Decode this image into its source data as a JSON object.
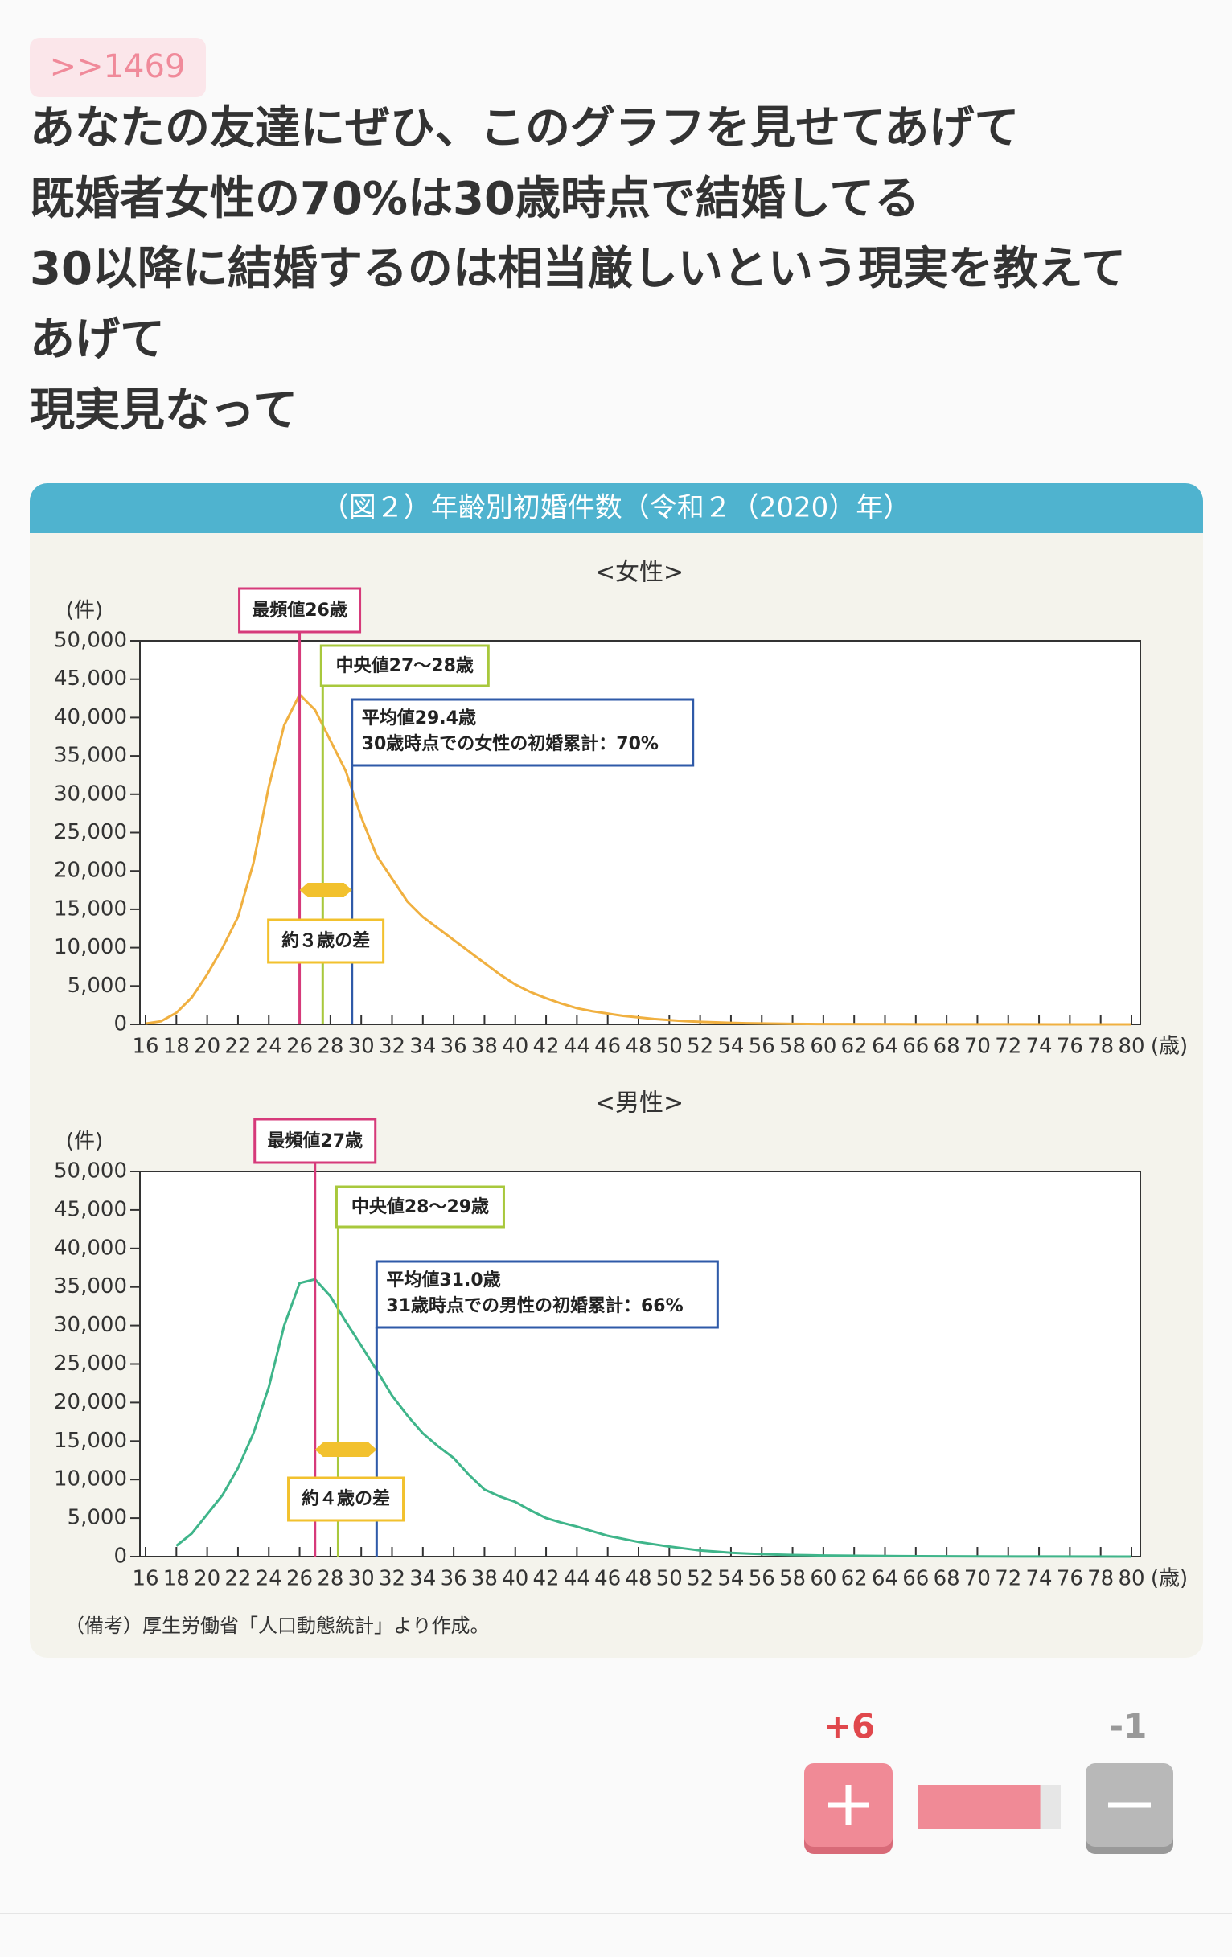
{
  "post": {
    "reply_to": ">>1469",
    "lines": [
      "あなたの友達にぜひ、このグラフを見せてあげて",
      "既婚者女性の70%は30歳時点で結婚してる",
      "30以降に結婚するのは相当厳しいという現実を教えて",
      "あげて",
      "現実見なって"
    ]
  },
  "figure": {
    "title": "（図２）年齢別初婚件数（令和２（2020）年）",
    "note": "（備考）厚生労働省「人口動態統計」より作成。"
  },
  "chart_data": [
    {
      "type": "line",
      "title": "<女性>",
      "y_label": "(件)",
      "x_label": "(歳)",
      "color": "#f0b040",
      "x": [
        16,
        17,
        18,
        19,
        20,
        21,
        22,
        23,
        24,
        25,
        26,
        27,
        28,
        29,
        30,
        31,
        32,
        33,
        34,
        35,
        36,
        37,
        38,
        39,
        40,
        41,
        42,
        43,
        44,
        45,
        46,
        47,
        48,
        49,
        50,
        51,
        52,
        53,
        54,
        55,
        56,
        57,
        58,
        59,
        60,
        65,
        70,
        75,
        80
      ],
      "values": [
        100,
        400,
        1500,
        3500,
        6500,
        10000,
        14000,
        21000,
        31000,
        39000,
        43000,
        41000,
        37000,
        33000,
        27000,
        22000,
        19000,
        16000,
        14000,
        12500,
        11000,
        9500,
        8000,
        6500,
        5200,
        4200,
        3400,
        2700,
        2100,
        1700,
        1400,
        1100,
        900,
        700,
        550,
        420,
        330,
        260,
        200,
        150,
        120,
        90,
        70,
        50,
        40,
        20,
        10,
        5,
        2
      ],
      "xlim": [
        16,
        80
      ],
      "ylim": [
        0,
        50000
      ],
      "xticks": [
        16,
        18,
        20,
        22,
        24,
        26,
        28,
        30,
        32,
        34,
        36,
        38,
        40,
        42,
        44,
        46,
        48,
        50,
        52,
        54,
        56,
        58,
        60,
        62,
        64,
        66,
        68,
        70,
        72,
        74,
        76,
        78,
        80
      ],
      "yticks": [
        {
          "value": 0,
          "label": "0"
        },
        {
          "value": 5000,
          "label": "5,000"
        },
        {
          "value": 10000,
          "label": "10,000"
        },
        {
          "value": 15000,
          "label": "15,000"
        },
        {
          "value": 20000,
          "label": "20,000"
        },
        {
          "value": 25000,
          "label": "25,000"
        },
        {
          "value": 30000,
          "label": "30,000"
        },
        {
          "value": 35000,
          "label": "35,000"
        },
        {
          "value": 40000,
          "label": "40,000"
        },
        {
          "value": 45000,
          "label": "45,000"
        },
        {
          "value": 50000,
          "label": "50,000"
        }
      ],
      "markers": [
        {
          "label": "最頻値26歳",
          "x": 26,
          "color": "#d63a7a"
        },
        {
          "label": "中央値27～28歳",
          "x": 27.5,
          "color": "#a8c83c"
        },
        {
          "label": "平均値29.4歳",
          "note": "30歳時点での女性の初婚累計：70%",
          "x": 29.4,
          "color": "#2f5aa8"
        }
      ],
      "gap": {
        "label": "約３歳の差",
        "color": "#f2c12e"
      }
    },
    {
      "type": "line",
      "title": "<男性>",
      "y_label": "(件)",
      "x_label": "(歳)",
      "color": "#3fb58a",
      "x": [
        18,
        19,
        20,
        21,
        22,
        23,
        24,
        25,
        26,
        27,
        28,
        29,
        30,
        31,
        32,
        33,
        34,
        35,
        36,
        37,
        38,
        39,
        40,
        41,
        42,
        43,
        44,
        45,
        46,
        47,
        48,
        49,
        50,
        51,
        52,
        53,
        54,
        55,
        56,
        57,
        58,
        59,
        60,
        65,
        70,
        75,
        80
      ],
      "values": [
        1400,
        3000,
        5500,
        8000,
        11500,
        16000,
        22000,
        30000,
        35500,
        36000,
        33800,
        30500,
        27400,
        24200,
        20900,
        18300,
        16000,
        14300,
        12800,
        10600,
        8700,
        7800,
        7100,
        6000,
        5000,
        4400,
        3900,
        3300,
        2700,
        2300,
        1900,
        1600,
        1300,
        1050,
        800,
        650,
        500,
        400,
        320,
        260,
        210,
        180,
        150,
        60,
        25,
        10,
        4
      ],
      "xlim": [
        16,
        80
      ],
      "ylim": [
        0,
        50000
      ],
      "xticks": [
        16,
        18,
        20,
        22,
        24,
        26,
        28,
        30,
        32,
        34,
        36,
        38,
        40,
        42,
        44,
        46,
        48,
        50,
        52,
        54,
        56,
        58,
        60,
        62,
        64,
        66,
        68,
        70,
        72,
        74,
        76,
        78,
        80
      ],
      "yticks": [
        {
          "value": 0,
          "label": "0"
        },
        {
          "value": 5000,
          "label": "5,000"
        },
        {
          "value": 10000,
          "label": "10,000"
        },
        {
          "value": 15000,
          "label": "15,000"
        },
        {
          "value": 20000,
          "label": "20,000"
        },
        {
          "value": 25000,
          "label": "25,000"
        },
        {
          "value": 30000,
          "label": "30,000"
        },
        {
          "value": 35000,
          "label": "35,000"
        },
        {
          "value": 40000,
          "label": "40,000"
        },
        {
          "value": 45000,
          "label": "45,000"
        },
        {
          "value": 50000,
          "label": "50,000"
        }
      ],
      "markers": [
        {
          "label": "最頻値27歳",
          "x": 27,
          "color": "#d63a7a"
        },
        {
          "label": "中央値28～29歳",
          "x": 28.5,
          "color": "#a8c83c"
        },
        {
          "label": "平均値31.0歳",
          "note": "31歳時点での男性の初婚累計：66%",
          "x": 31,
          "color": "#2f5aa8"
        }
      ],
      "gap": {
        "label": "約４歳の差",
        "color": "#f2c12e"
      }
    }
  ],
  "votes": {
    "up": "+6",
    "down": "-1"
  }
}
